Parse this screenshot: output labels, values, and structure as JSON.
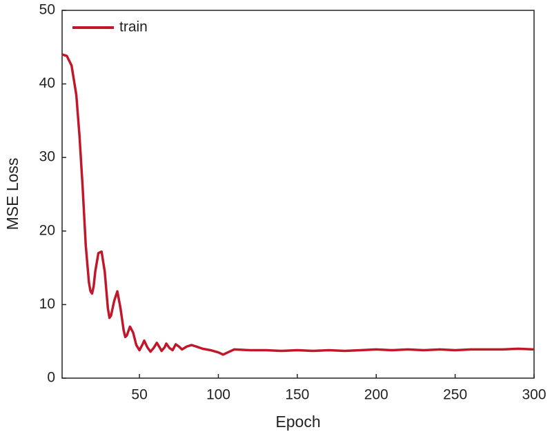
{
  "chart_data": {
    "type": "line",
    "x_label": "Epoch",
    "y_label": "MSE Loss",
    "xlim": [
      1,
      300
    ],
    "xticks": [
      50,
      100,
      150,
      200,
      250,
      300
    ],
    "ylim": [
      0,
      50
    ],
    "yticks": [
      0,
      10,
      20,
      30,
      40,
      50
    ],
    "legend": "upper left",
    "x": [
      1,
      4,
      7,
      10,
      12,
      14,
      16,
      18,
      19,
      20,
      21,
      22,
      24,
      26,
      28,
      30,
      31,
      32,
      34,
      36,
      38,
      40,
      41,
      42,
      44,
      46,
      48,
      50,
      52,
      53,
      55,
      57,
      59,
      61,
      63,
      64,
      66,
      67,
      69,
      71,
      73,
      75,
      77,
      80,
      83,
      86,
      90,
      95,
      100,
      103,
      106,
      110,
      120,
      130,
      140,
      150,
      160,
      170,
      180,
      190,
      200,
      210,
      220,
      230,
      240,
      250,
      260,
      270,
      280,
      290,
      300
    ],
    "series": [
      {
        "name": "train",
        "color": "#c0172a",
        "values": [
          44,
          43.8,
          42.5,
          38.5,
          33,
          26,
          18,
          13,
          11.8,
          11.5,
          12.5,
          14.5,
          17,
          17.2,
          14.5,
          9.5,
          8.2,
          8.5,
          10.5,
          11.8,
          9.5,
          6.5,
          5.6,
          5.8,
          7,
          6.2,
          4.5,
          3.8,
          4.6,
          5.1,
          4.2,
          3.6,
          4.1,
          4.8,
          4.1,
          3.7,
          4.2,
          4.7,
          4.1,
          3.8,
          4.6,
          4.3,
          3.9,
          4.3,
          4.5,
          4.3,
          4,
          3.8,
          3.5,
          3.2,
          3.5,
          3.9,
          3.8,
          3.8,
          3.7,
          3.8,
          3.7,
          3.8,
          3.7,
          3.8,
          3.9,
          3.8,
          3.9,
          3.8,
          3.9,
          3.8,
          3.9,
          3.9,
          3.9,
          4,
          3.9
        ]
      }
    ]
  }
}
